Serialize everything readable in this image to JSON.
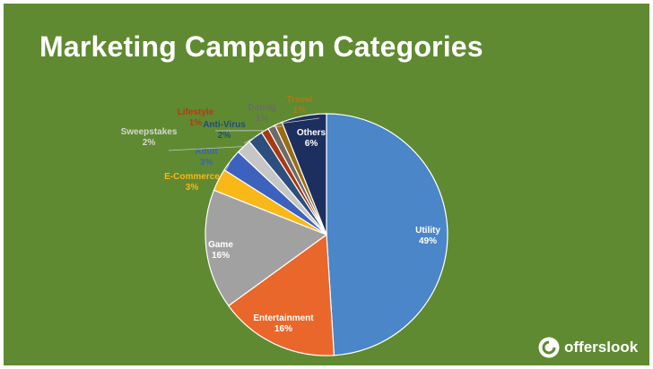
{
  "chart_data": {
    "type": "pie",
    "title": "Marketing Campaign Categories",
    "slices": [
      {
        "label": "Utility",
        "value": 49,
        "display": "49%",
        "color": "#4a86c8",
        "label_color": "#ffffff"
      },
      {
        "label": "Entertainment",
        "value": 16,
        "display": "16%",
        "color": "#e9672a",
        "label_color": "#ffffff"
      },
      {
        "label": "Game",
        "value": 16,
        "display": "16%",
        "color": "#a1a1a1",
        "label_color": "#ffffff"
      },
      {
        "label": "E-Commerce",
        "value": 3,
        "display": "3%",
        "color": "#f9b718",
        "label_color": "#f9b718"
      },
      {
        "label": "Adult",
        "value": 3,
        "display": "3%",
        "color": "#3c62be",
        "label_color": "#3c62be"
      },
      {
        "label": "Sweepstakes",
        "value": 2,
        "display": "2%",
        "color": "#c6c6c6",
        "label_color": "#d6d6d6"
      },
      {
        "label": "Anti-Virus",
        "value": 2,
        "display": "2%",
        "color": "#2c4f7e",
        "label_color": "#1f4e79"
      },
      {
        "label": "Lifestyle",
        "value": 1,
        "display": "1%",
        "color": "#a73a14",
        "label_color": "#b83a12"
      },
      {
        "label": "Dating",
        "value": 1,
        "display": "1%",
        "color": "#6b6b6b",
        "label_color": "#6b6b6b"
      },
      {
        "label": "Travel",
        "value": 1,
        "display": "1%",
        "color": "#9a6c14",
        "label_color": "#b07a10"
      },
      {
        "label": "Others",
        "value": 6,
        "display": "6%",
        "color": "#1d2f5e",
        "label_color": "#ffffff"
      }
    ]
  },
  "brand": {
    "name": "offerslook"
  }
}
